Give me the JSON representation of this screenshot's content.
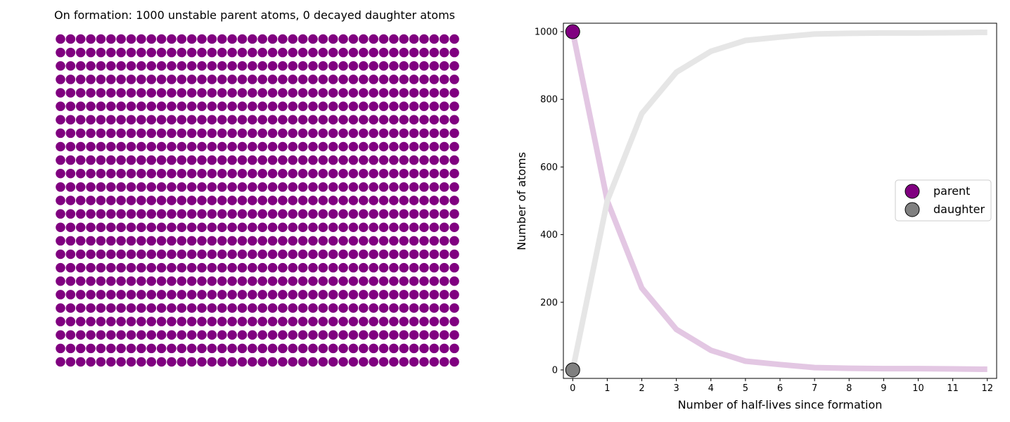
{
  "left_panel": {
    "title": "On formation: 1000 unstable parent atoms, 0 decayed daughter atoms",
    "grid": {
      "rows": 25,
      "cols": 40,
      "parent_count": 1000,
      "daughter_count": 0
    }
  },
  "colors": {
    "parent": "#800080",
    "daughter": "#808080",
    "parent_line": "#e3c7e3",
    "daughter_line": "#e6e6e6",
    "marker_edge": "#000000"
  },
  "chart_data": {
    "type": "line",
    "title": "",
    "xlabel": "Number of half-lives since formation",
    "ylabel": "Number of atoms",
    "x": [
      0,
      1,
      2,
      3,
      4,
      5,
      6,
      7,
      8,
      9,
      10,
      11,
      12
    ],
    "xticks": [
      "0",
      "1",
      "2",
      "3",
      "4",
      "5",
      "6",
      "7",
      "8",
      "9",
      "10",
      "11",
      "12"
    ],
    "yticks": [
      "0",
      "200",
      "400",
      "600",
      "800",
      "1000"
    ],
    "xlim": [
      -0.27,
      12.27
    ],
    "ylim": [
      -25,
      1025
    ],
    "grid": false,
    "legend_position": "center-right",
    "series": [
      {
        "name": "parent",
        "values": [
          1000,
          500,
          242,
          120,
          58,
          26,
          16,
          7,
          5,
          4,
          4,
          3,
          2
        ]
      },
      {
        "name": "daughter",
        "values": [
          0,
          500,
          758,
          880,
          942,
          974,
          984,
          993,
          995,
          996,
          996,
          997,
          998
        ]
      }
    ],
    "current": {
      "x": 0,
      "parent": 1000,
      "daughter": 0
    },
    "legend": [
      "parent",
      "daughter"
    ]
  }
}
